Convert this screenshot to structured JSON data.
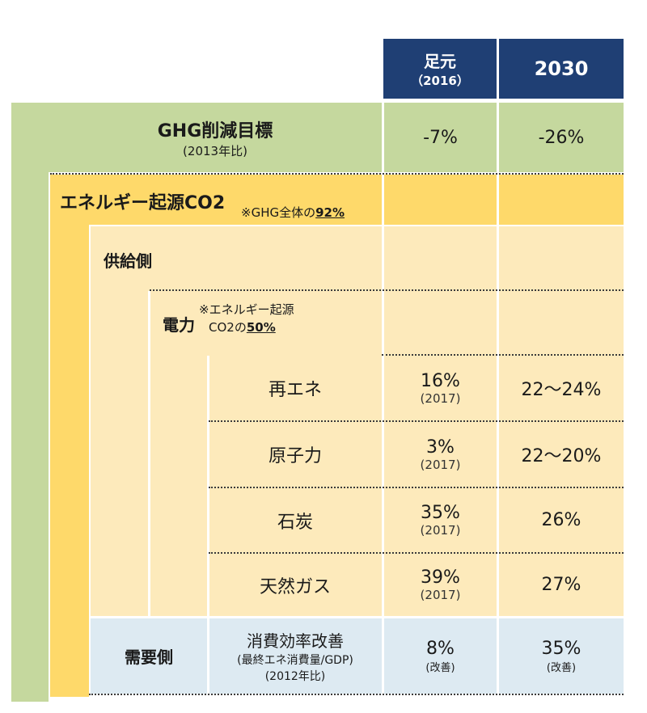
{
  "columns": {
    "current": {
      "label": "足元",
      "sub": "（2016）"
    },
    "target": {
      "label": "2030"
    }
  },
  "ghg": {
    "title": "GHG削減目標",
    "note": "(2013年比)",
    "current": "-7%",
    "target": "-26%"
  },
  "energy_co2": {
    "title": "エネルギー起源CO2",
    "note_prefix": "※GHG全体の",
    "note_value": "92%"
  },
  "supply": {
    "title": "供給側"
  },
  "power": {
    "title": "電力",
    "note_line1": "※エネルギー起源",
    "note_line2_prefix": "CO2の",
    "note_value": "50%"
  },
  "power_rows": [
    {
      "label": "再エネ",
      "current": "16%",
      "current_sub": "(2017)",
      "target": "22～24%"
    },
    {
      "label": "原子力",
      "current": "3%",
      "current_sub": "(2017)",
      "target": "22～20%"
    },
    {
      "label": "石炭",
      "current": "35%",
      "current_sub": "(2017)",
      "target": "26%"
    },
    {
      "label": "天然ガス",
      "current": "39%",
      "current_sub": "(2017)",
      "target": "27%"
    }
  ],
  "demand": {
    "title": "需要側",
    "item": "消費効率改善",
    "item_sub1": "(最終エネ消費量/GDP)",
    "item_sub2": "(2012年比)",
    "current": "8%",
    "current_sub": "(改善)",
    "target": "35%",
    "target_sub": "(改善)"
  },
  "colors": {
    "header": "#1f3f74",
    "green": "#c5d89e",
    "orange": "#fed96a",
    "cream": "#fdeabb",
    "blue": "#ddeaf2"
  }
}
